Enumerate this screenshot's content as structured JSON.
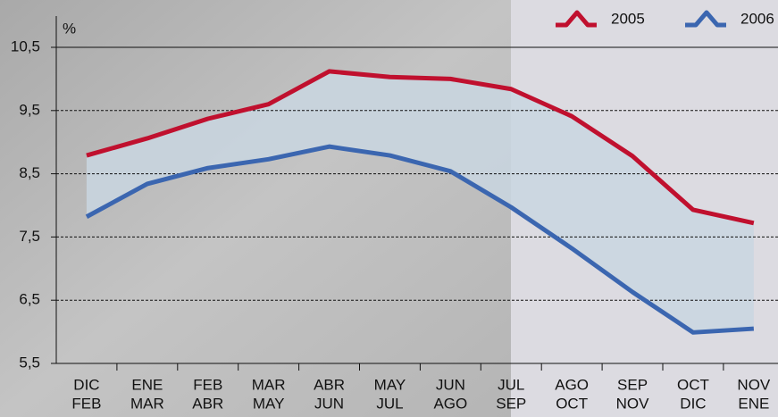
{
  "chart_data": {
    "type": "line",
    "y_unit": "%",
    "categories": [
      [
        "DIC",
        "FEB"
      ],
      [
        "ENE",
        "MAR"
      ],
      [
        "FEB",
        "ABR"
      ],
      [
        "MAR",
        "MAY"
      ],
      [
        "ABR",
        "JUN"
      ],
      [
        "MAY",
        "JUL"
      ],
      [
        "JUN",
        "AGO"
      ],
      [
        "JUL",
        "SEP"
      ],
      [
        "AGO",
        "OCT"
      ],
      [
        "SEP",
        "NOV"
      ],
      [
        "OCT",
        "DIC"
      ],
      [
        "NOV",
        "ENE"
      ]
    ],
    "series": [
      {
        "name": "2005",
        "color": "#c0102e",
        "values": [
          8.79,
          9.06,
          9.37,
          9.6,
          10.12,
          10.03,
          10.0,
          9.84,
          9.41,
          8.78,
          7.93,
          7.72
        ]
      },
      {
        "name": "2006",
        "color": "#3b66b0",
        "values": [
          7.82,
          8.34,
          8.59,
          8.73,
          8.93,
          8.79,
          8.54,
          7.97,
          7.32,
          6.63,
          5.99,
          6.05
        ]
      }
    ],
    "ylim": [
      5.5,
      10.5
    ],
    "yticks": [
      {
        "value": 5.5,
        "label": "5,5"
      },
      {
        "value": 6.5,
        "label": "6,5"
      },
      {
        "value": 7.5,
        "label": "7,5"
      },
      {
        "value": 8.5,
        "label": "8,5"
      },
      {
        "value": 9.5,
        "label": "9,5"
      },
      {
        "value": 10.5,
        "label": "10,5"
      }
    ],
    "grid": true,
    "legend": "top-right"
  }
}
